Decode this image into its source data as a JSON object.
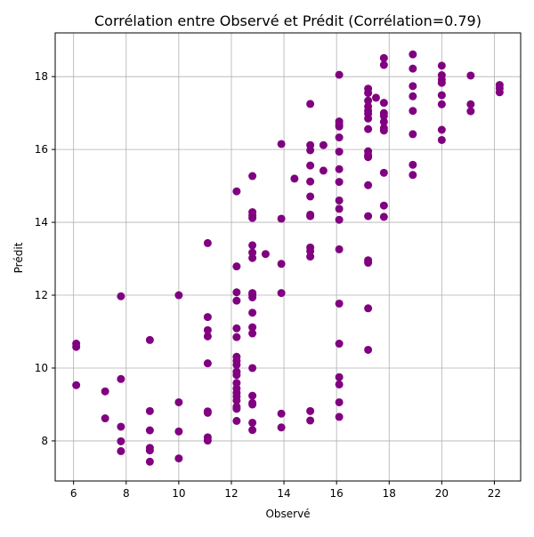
{
  "chart_data": {
    "type": "scatter",
    "title": "Corrélation entre Observé et Prédit (Corrélation=0.79)",
    "xlabel": "Observé",
    "ylabel": "Prédit",
    "xlim": [
      5.3,
      23.0
    ],
    "ylim": [
      6.9,
      19.2
    ],
    "xticks": [
      6,
      8,
      10,
      12,
      14,
      16,
      18,
      20,
      22
    ],
    "yticks": [
      8,
      10,
      12,
      14,
      16,
      18
    ],
    "grid": true,
    "marker_color": "#800080",
    "series": [
      {
        "points": [
          [
            6.1,
            10.67
          ],
          [
            6.1,
            10.58
          ],
          [
            6.1,
            9.53
          ],
          [
            7.2,
            9.36
          ],
          [
            7.2,
            8.62
          ],
          [
            7.8,
            11.97
          ],
          [
            7.8,
            9.7
          ],
          [
            7.8,
            8.39
          ],
          [
            7.8,
            7.99
          ],
          [
            7.8,
            7.72
          ],
          [
            8.9,
            10.77
          ],
          [
            8.9,
            8.82
          ],
          [
            8.9,
            8.29
          ],
          [
            8.9,
            7.81
          ],
          [
            8.9,
            7.74
          ],
          [
            8.9,
            7.43
          ],
          [
            10.0,
            12.0
          ],
          [
            10.0,
            9.06
          ],
          [
            10.0,
            8.26
          ],
          [
            10.0,
            7.52
          ],
          [
            11.1,
            13.43
          ],
          [
            11.1,
            11.4
          ],
          [
            11.1,
            11.04
          ],
          [
            11.1,
            10.87
          ],
          [
            11.1,
            10.13
          ],
          [
            11.1,
            8.81
          ],
          [
            11.1,
            8.77
          ],
          [
            11.1,
            8.1
          ],
          [
            11.1,
            8.01
          ],
          [
            12.2,
            14.85
          ],
          [
            12.2,
            12.79
          ],
          [
            12.2,
            12.08
          ],
          [
            12.2,
            11.85
          ],
          [
            12.2,
            11.09
          ],
          [
            12.2,
            10.85
          ],
          [
            12.2,
            10.31
          ],
          [
            12.2,
            10.2
          ],
          [
            12.2,
            10.09
          ],
          [
            12.2,
            9.9
          ],
          [
            12.2,
            9.81
          ],
          [
            12.2,
            9.59
          ],
          [
            12.2,
            9.44
          ],
          [
            12.2,
            9.32
          ],
          [
            12.2,
            9.22
          ],
          [
            12.2,
            9.11
          ],
          [
            12.2,
            8.94
          ],
          [
            12.2,
            8.88
          ],
          [
            12.2,
            8.55
          ],
          [
            12.8,
            15.27
          ],
          [
            12.8,
            14.28
          ],
          [
            12.8,
            14.19
          ],
          [
            12.8,
            14.12
          ],
          [
            12.8,
            13.37
          ],
          [
            12.8,
            13.17
          ],
          [
            12.8,
            13.02
          ],
          [
            12.8,
            12.06
          ],
          [
            12.8,
            12.01
          ],
          [
            12.8,
            11.94
          ],
          [
            12.8,
            11.52
          ],
          [
            12.8,
            11.12
          ],
          [
            12.8,
            10.95
          ],
          [
            12.8,
            10.0
          ],
          [
            12.8,
            9.24
          ],
          [
            12.8,
            9.04
          ],
          [
            12.8,
            9.0
          ],
          [
            12.8,
            8.5
          ],
          [
            12.8,
            8.3
          ],
          [
            13.3,
            13.13
          ],
          [
            13.9,
            16.15
          ],
          [
            13.9,
            14.1
          ],
          [
            13.9,
            12.86
          ],
          [
            13.9,
            12.06
          ],
          [
            13.9,
            8.75
          ],
          [
            13.9,
            8.37
          ],
          [
            14.4,
            15.2
          ],
          [
            15.0,
            17.25
          ],
          [
            15.0,
            16.12
          ],
          [
            15.0,
            15.98
          ],
          [
            15.0,
            15.56
          ],
          [
            15.0,
            15.12
          ],
          [
            15.0,
            14.71
          ],
          [
            15.0,
            14.21
          ],
          [
            15.0,
            14.17
          ],
          [
            15.0,
            13.31
          ],
          [
            15.0,
            13.21
          ],
          [
            15.0,
            13.06
          ],
          [
            15.0,
            8.82
          ],
          [
            15.0,
            8.56
          ],
          [
            15.5,
            16.12
          ],
          [
            15.5,
            15.42
          ],
          [
            16.1,
            18.05
          ],
          [
            16.1,
            16.77
          ],
          [
            16.1,
            16.69
          ],
          [
            16.1,
            16.63
          ],
          [
            16.1,
            16.33
          ],
          [
            16.1,
            15.94
          ],
          [
            16.1,
            15.46
          ],
          [
            16.1,
            15.11
          ],
          [
            16.1,
            14.6
          ],
          [
            16.1,
            14.37
          ],
          [
            16.1,
            14.07
          ],
          [
            16.1,
            13.26
          ],
          [
            16.1,
            11.77
          ],
          [
            16.1,
            10.67
          ],
          [
            16.1,
            9.75
          ],
          [
            16.1,
            9.55
          ],
          [
            16.1,
            9.06
          ],
          [
            16.1,
            8.66
          ],
          [
            17.2,
            17.67
          ],
          [
            17.2,
            17.55
          ],
          [
            17.2,
            17.34
          ],
          [
            17.2,
            17.18
          ],
          [
            17.2,
            17.06
          ],
          [
            17.2,
            16.98
          ],
          [
            17.2,
            16.85
          ],
          [
            17.2,
            16.56
          ],
          [
            17.2,
            15.95
          ],
          [
            17.2,
            15.84
          ],
          [
            17.2,
            15.79
          ],
          [
            17.2,
            15.02
          ],
          [
            17.2,
            14.17
          ],
          [
            17.2,
            12.96
          ],
          [
            17.2,
            12.89
          ],
          [
            17.2,
            11.64
          ],
          [
            17.2,
            10.5
          ],
          [
            17.5,
            17.42
          ],
          [
            17.8,
            18.51
          ],
          [
            17.8,
            18.32
          ],
          [
            17.8,
            17.28
          ],
          [
            17.8,
            17.0
          ],
          [
            17.8,
            16.92
          ],
          [
            17.8,
            16.76
          ],
          [
            17.8,
            16.59
          ],
          [
            17.8,
            16.52
          ],
          [
            17.8,
            15.36
          ],
          [
            17.8,
            14.46
          ],
          [
            17.8,
            14.15
          ],
          [
            18.9,
            18.61
          ],
          [
            18.9,
            18.22
          ],
          [
            18.9,
            17.74
          ],
          [
            18.9,
            17.46
          ],
          [
            18.9,
            17.06
          ],
          [
            18.9,
            16.42
          ],
          [
            18.9,
            15.58
          ],
          [
            18.9,
            15.3
          ],
          [
            20.0,
            18.3
          ],
          [
            20.0,
            18.04
          ],
          [
            20.0,
            17.92
          ],
          [
            20.0,
            17.83
          ],
          [
            20.0,
            17.49
          ],
          [
            20.0,
            17.24
          ],
          [
            20.0,
            16.54
          ],
          [
            20.0,
            16.26
          ],
          [
            21.1,
            18.03
          ],
          [
            21.1,
            17.24
          ],
          [
            21.1,
            17.05
          ],
          [
            22.2,
            17.77
          ],
          [
            22.2,
            17.68
          ],
          [
            22.2,
            17.57
          ]
        ]
      }
    ]
  }
}
